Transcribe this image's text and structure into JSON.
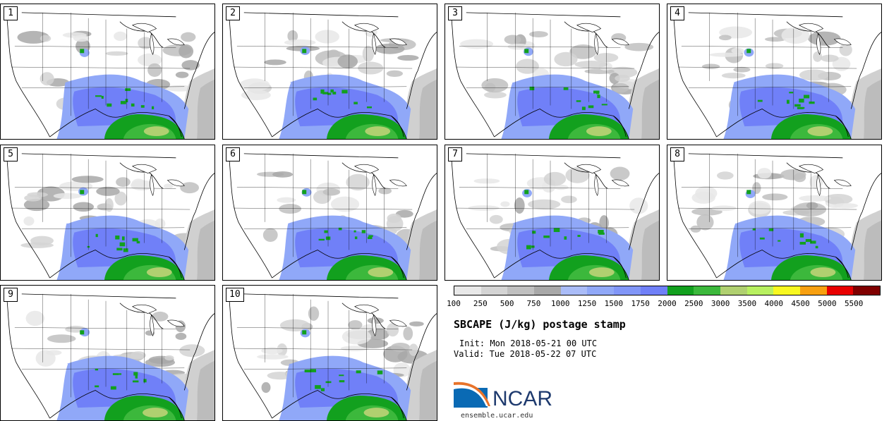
{
  "panels": [
    {
      "label": "1"
    },
    {
      "label": "2"
    },
    {
      "label": "3"
    },
    {
      "label": "4"
    },
    {
      "label": "5"
    },
    {
      "label": "6"
    },
    {
      "label": "7"
    },
    {
      "label": "8"
    },
    {
      "label": "9"
    },
    {
      "label": "10"
    }
  ],
  "legend": {
    "colors": [
      "#e8e8e8",
      "#d4d4d4",
      "#c0c0c0",
      "#a8a8a8",
      "#aabcf8",
      "#90a8f8",
      "#8196f8",
      "#7080f8",
      "#12a01e",
      "#3cb83c",
      "#b0d070",
      "#b8f060",
      "#f8f820",
      "#f8a010",
      "#e80000",
      "#800000"
    ],
    "tick_labels": [
      "100",
      "250",
      "500",
      "750",
      "1000",
      "1250",
      "1500",
      "1750",
      "2000",
      "2500",
      "3000",
      "3500",
      "4000",
      "4500",
      "5000",
      "5500"
    ]
  },
  "title": "SBCAPE (J/kg) postage stamp",
  "init": "Init: Mon 2018-05-21 00 UTC",
  "valid": "Valid: Tue 2018-05-22 07 UTC",
  "logo_text": "NCAR",
  "url": "ensemble.ucar.edu",
  "map_icon": "conus-map-icon"
}
